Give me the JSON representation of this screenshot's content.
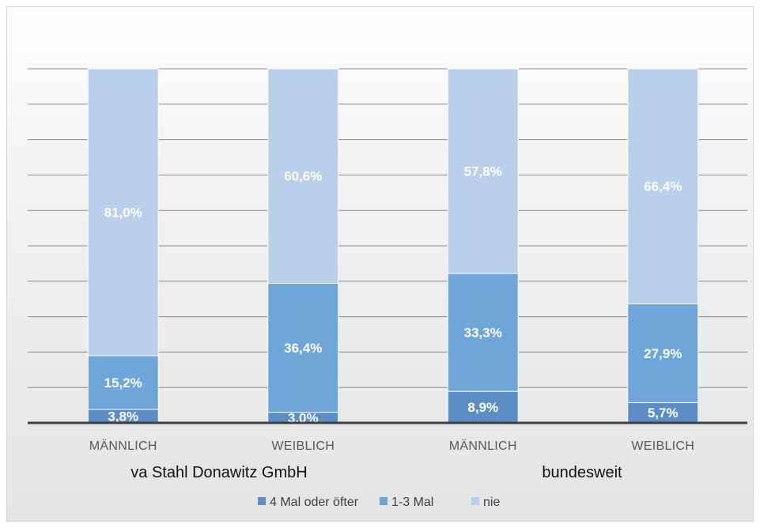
{
  "chart_data": {
    "type": "bar",
    "stacked": true,
    "normalized": "percent",
    "title": "",
    "xlabel": "",
    "ylabel": "",
    "categories": [
      "MÄNNLICH",
      "WEIBLICH",
      "MÄNNLICH",
      "WEIBLICH"
    ],
    "groups": [
      {
        "label": "va Stahl Donawitz GmbH",
        "categories": [
          0,
          1
        ]
      },
      {
        "label": "bundesweit",
        "categories": [
          2,
          3
        ]
      }
    ],
    "series": [
      {
        "name": "4 Mal oder öfter",
        "color": "#5b8ec5",
        "values": [
          3.8,
          3.0,
          8.9,
          5.7
        ],
        "labels": [
          "3,8%",
          "3,0%",
          "8,9%",
          "5,7%"
        ]
      },
      {
        "name": "1-3 Mal",
        "color": "#6fa6da",
        "values": [
          15.2,
          36.4,
          33.3,
          27.9
        ],
        "labels": [
          "15,2%",
          "36,4%",
          "33,3%",
          "27,9%"
        ]
      },
      {
        "name": "nie",
        "color": "#b9cfeb",
        "values": [
          81.0,
          60.6,
          57.8,
          66.4
        ],
        "labels": [
          "81,0%",
          "60,6%",
          "57,8%",
          "66,4%"
        ]
      }
    ],
    "ylim": [
      0,
      100
    ],
    "grid": true,
    "legend_position": "bottom"
  }
}
